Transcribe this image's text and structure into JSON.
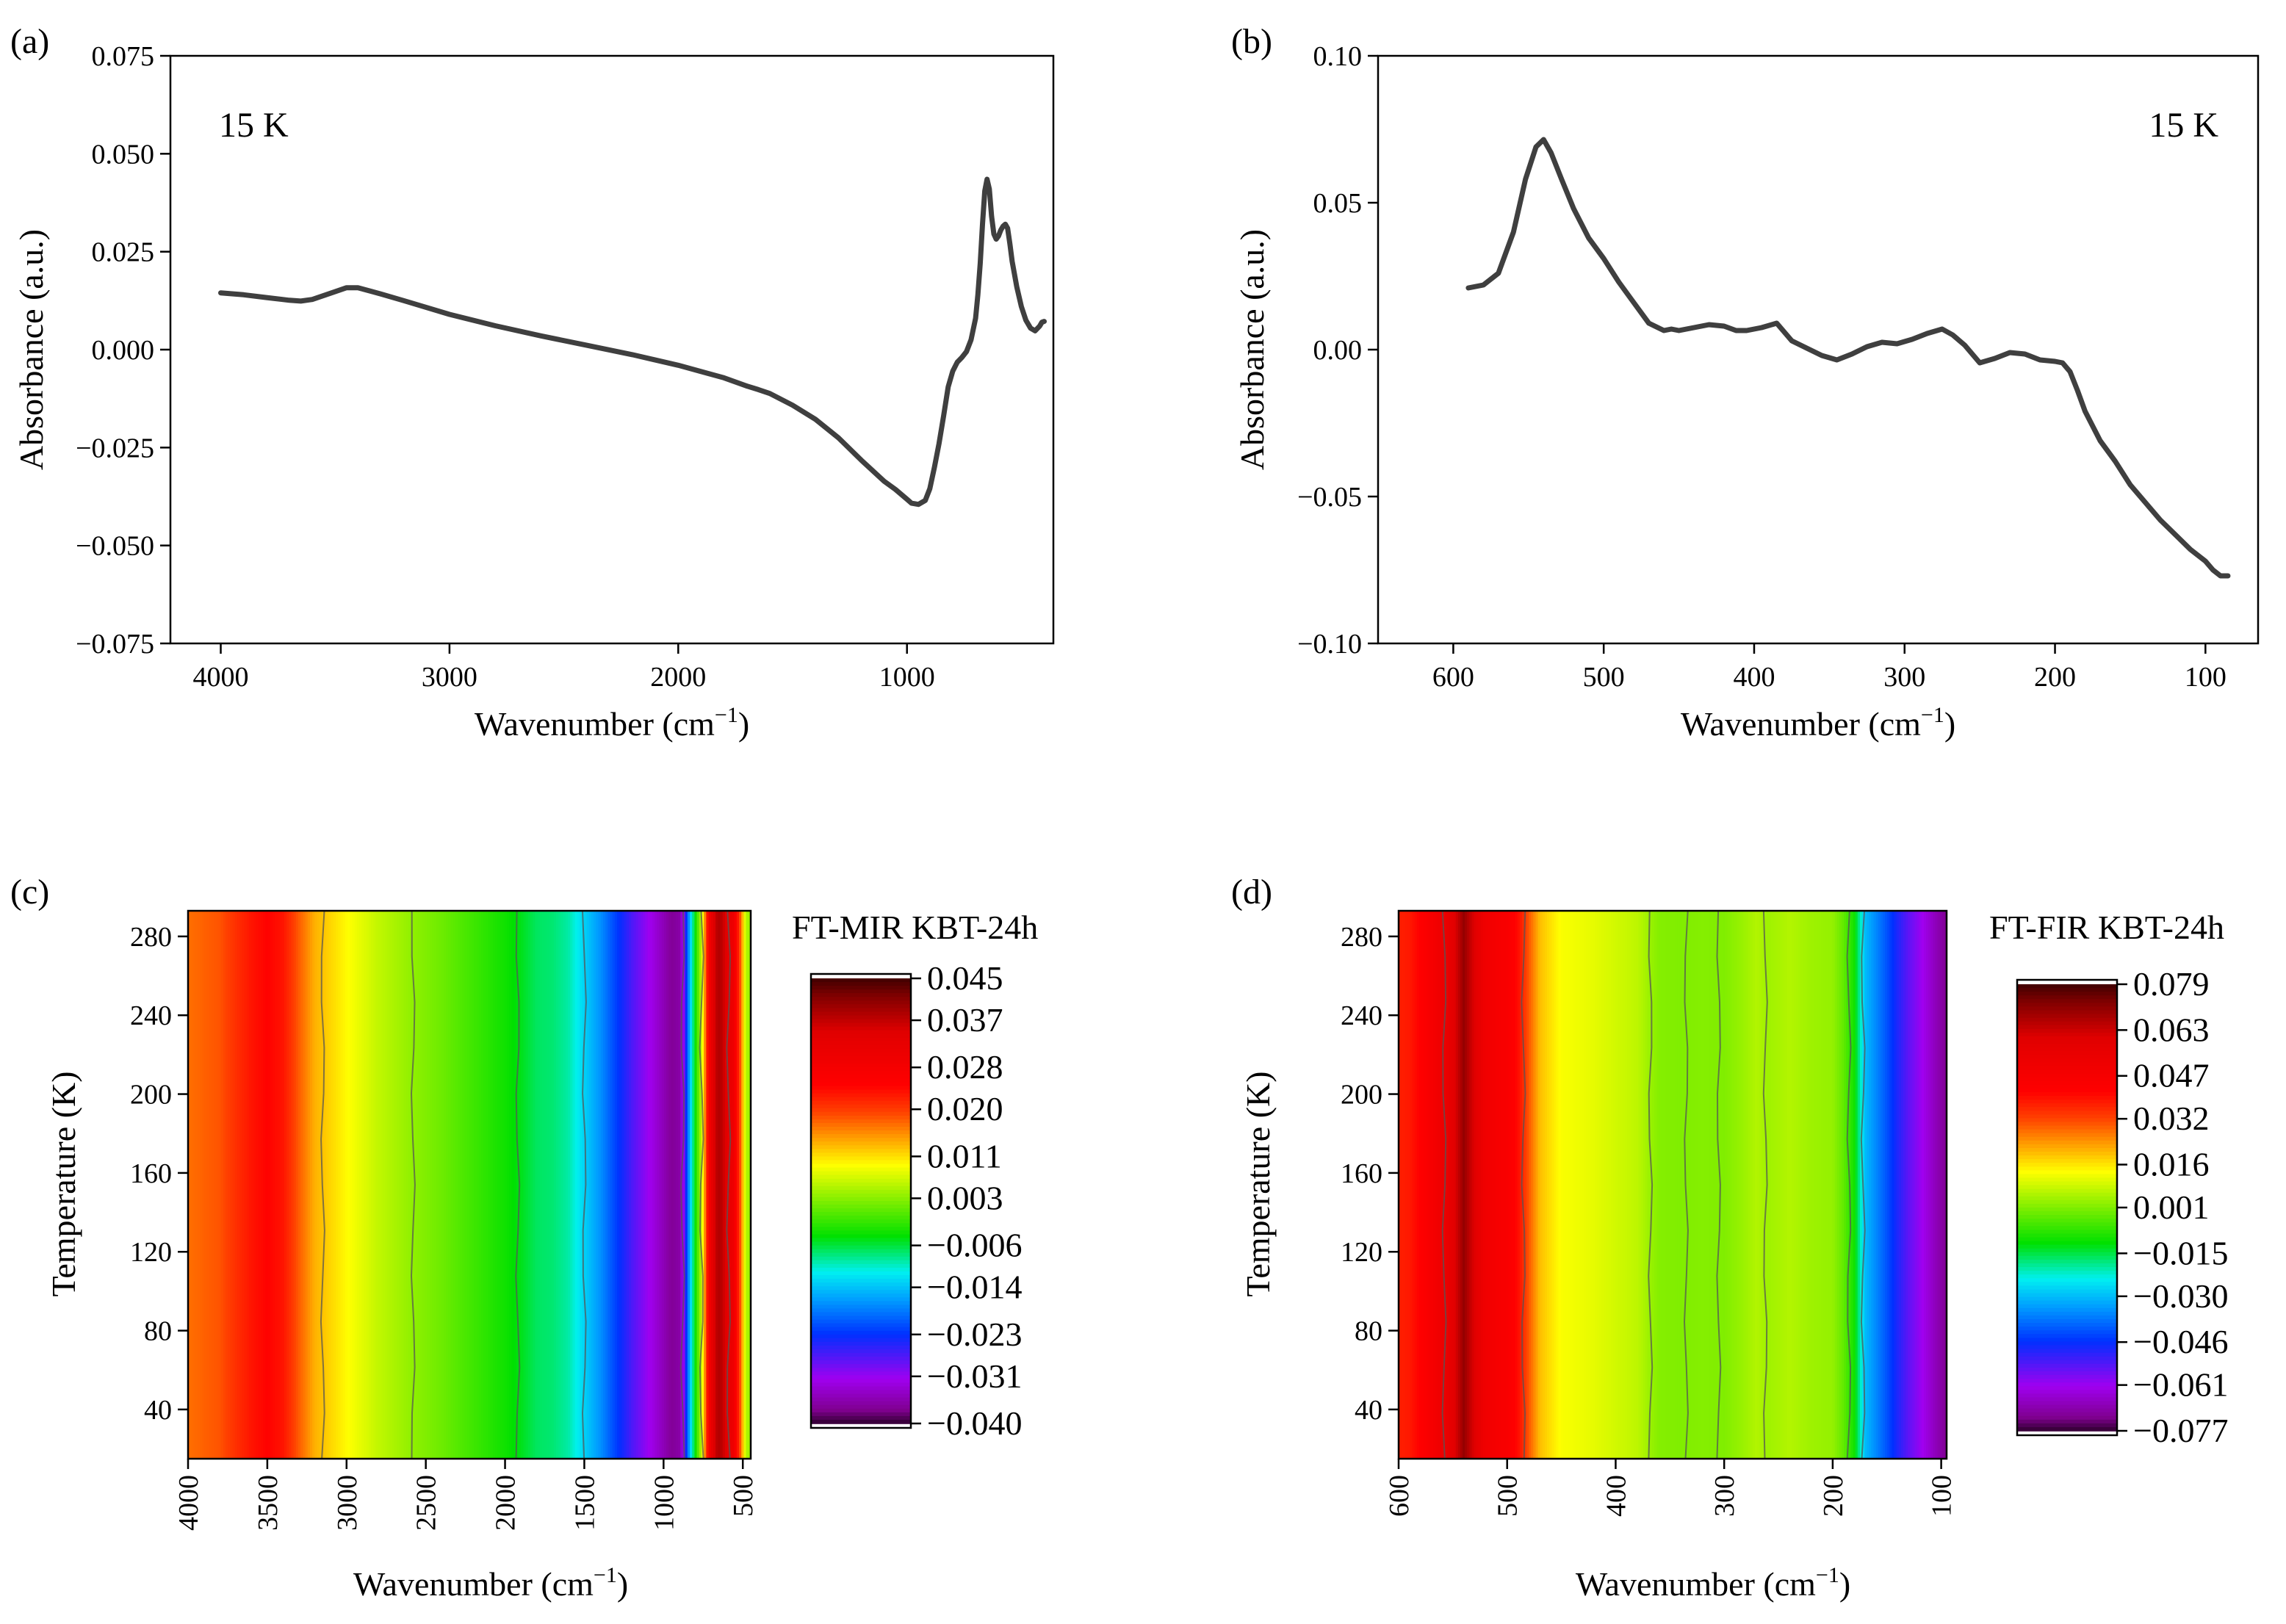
{
  "chart_data": [
    {
      "id": "a",
      "type": "line",
      "panel_label": "(a)",
      "annotation": "15 K",
      "xlabel": "Wavenumber (cm",
      "xlabel_sup": "−1",
      "xlabel_tail": ")",
      "ylabel": "Absorbance (a.u.)",
      "xlim": [
        4220,
        360
      ],
      "ylim": [
        -0.075,
        0.075
      ],
      "xticks": [
        4000,
        3000,
        2000,
        1000
      ],
      "xtick_labels": [
        "4000",
        "3000",
        "2000",
        "1000"
      ],
      "yticks": [
        -0.075,
        -0.05,
        -0.025,
        0,
        0.025,
        0.05,
        0.075
      ],
      "ytick_labels": [
        "−0.075",
        "−0.050",
        "−0.025",
        "0.000",
        "0.025",
        "0.050",
        "0.075"
      ],
      "line_color": "#3f3f3f",
      "series": [
        {
          "x": [
            4000,
            3900,
            3800,
            3700,
            3650,
            3600,
            3500,
            3450,
            3400,
            3300,
            3200,
            3000,
            2800,
            2600,
            2400,
            2200,
            2000,
            1800,
            1700,
            1650,
            1600,
            1500,
            1400,
            1300,
            1200,
            1100,
            1050,
            1000,
            980,
            950,
            920,
            900,
            880,
            860,
            840,
            820,
            800,
            780,
            760,
            740,
            720,
            700,
            690,
            680,
            670,
            660,
            650,
            640,
            630,
            620,
            610,
            600,
            590,
            580,
            570,
            560,
            550,
            540,
            520,
            500,
            480,
            460,
            440,
            420,
            410,
            400
          ],
          "y": [
            0.0145,
            0.014,
            0.0133,
            0.0126,
            0.0124,
            0.0128,
            0.0148,
            0.0158,
            0.0158,
            0.0142,
            0.0125,
            0.009,
            0.0061,
            0.0035,
            0.0011,
            -0.0013,
            -0.004,
            -0.0072,
            -0.0093,
            -0.0102,
            -0.0112,
            -0.0142,
            -0.0178,
            -0.0225,
            -0.0282,
            -0.0336,
            -0.0357,
            -0.0382,
            -0.0392,
            -0.0395,
            -0.0385,
            -0.0355,
            -0.03,
            -0.024,
            -0.017,
            -0.0095,
            -0.0055,
            -0.0032,
            -0.002,
            -0.0005,
            0.0025,
            0.008,
            0.014,
            0.022,
            0.032,
            0.0405,
            0.0435,
            0.041,
            0.034,
            0.0295,
            0.0282,
            0.029,
            0.0305,
            0.0315,
            0.032,
            0.031,
            0.027,
            0.0225,
            0.016,
            0.011,
            0.0075,
            0.0055,
            0.0048,
            0.006,
            0.007,
            0.0072
          ]
        }
      ]
    },
    {
      "id": "b",
      "type": "line",
      "panel_label": "(b)",
      "annotation": "15 K",
      "xlabel": "Wavenumber (cm",
      "xlabel_sup": "−1",
      "xlabel_tail": ")",
      "ylabel": "Absorbance (a.u.)",
      "xlim": [
        650,
        65
      ],
      "ylim": [
        -0.1,
        0.1
      ],
      "xticks": [
        600,
        500,
        400,
        300,
        200,
        100
      ],
      "xtick_labels": [
        "600",
        "500",
        "400",
        "300",
        "200",
        "100"
      ],
      "yticks": [
        -0.1,
        -0.05,
        0,
        0.05,
        0.1
      ],
      "ytick_labels": [
        "−0.10",
        "−0.05",
        "0.00",
        "0.05",
        "0.10"
      ],
      "line_color": "#3f3f3f",
      "series": [
        {
          "x": [
            590,
            580,
            570,
            560,
            552,
            545,
            540,
            535,
            528,
            520,
            510,
            500,
            490,
            480,
            470,
            460,
            455,
            450,
            440,
            430,
            420,
            412,
            405,
            395,
            385,
            375,
            365,
            355,
            345,
            335,
            325,
            315,
            305,
            295,
            285,
            275,
            268,
            260,
            250,
            240,
            230,
            220,
            210,
            200,
            195,
            190,
            185,
            180,
            170,
            160,
            150,
            140,
            130,
            120,
            110,
            100,
            95,
            90,
            85
          ],
          "y": [
            0.021,
            0.022,
            0.026,
            0.04,
            0.058,
            0.069,
            0.0715,
            0.067,
            0.058,
            0.048,
            0.038,
            0.031,
            0.023,
            0.016,
            0.009,
            0.0065,
            0.007,
            0.0065,
            0.0075,
            0.0085,
            0.008,
            0.0065,
            0.0065,
            0.0075,
            0.009,
            0.003,
            0.0005,
            -0.002,
            -0.0035,
            -0.0015,
            0.001,
            0.0025,
            0.002,
            0.0035,
            0.0055,
            0.007,
            0.005,
            0.0015,
            -0.0045,
            -0.003,
            -0.001,
            -0.0015,
            -0.0035,
            -0.004,
            -0.0045,
            -0.0075,
            -0.014,
            -0.021,
            -0.031,
            -0.038,
            -0.046,
            -0.052,
            -0.058,
            -0.063,
            -0.068,
            -0.072,
            -0.075,
            -0.077,
            -0.077
          ]
        }
      ]
    },
    {
      "id": "c",
      "type": "heatmap",
      "panel_label": "(c)",
      "xlabel": "Wavenumber (cm",
      "xlabel_sup": "−1",
      "xlabel_tail": ")",
      "ylabel": "Temperature (K)",
      "xlim": [
        4000,
        450
      ],
      "ylim": [
        15,
        293
      ],
      "xticks": [
        4000,
        3500,
        3000,
        2500,
        2000,
        1500,
        1000,
        500
      ],
      "xtick_labels": [
        "4000",
        "3500",
        "3000",
        "2500",
        "2000",
        "1500",
        "1000",
        "500"
      ],
      "yticks": [
        40,
        80,
        120,
        160,
        200,
        240,
        280
      ],
      "ytick_labels": [
        "40",
        "80",
        "120",
        "160",
        "200",
        "240",
        "280"
      ],
      "colorbar_title": "FT-MIR KBT-24h",
      "colorbar_range": [
        -0.04,
        0.045
      ],
      "colorbar_ticks": [
        0.045,
        0.037,
        0.028,
        0.02,
        0.011,
        0.003,
        -0.006,
        -0.014,
        -0.023,
        -0.031,
        -0.04
      ],
      "colorbar_tick_labels": [
        "0.045",
        "0.037",
        "0.028",
        "0.020",
        "0.011",
        "0.003",
        "−0.006",
        "−0.014",
        "−0.023",
        "−0.031",
        "−0.040"
      ],
      "profile_x": [
        4000,
        3800,
        3600,
        3500,
        3400,
        3300,
        3200,
        3000,
        2800,
        2600,
        2400,
        2200,
        2000,
        1900,
        1800,
        1700,
        1600,
        1500,
        1400,
        1300,
        1200,
        1100,
        1000,
        950,
        900,
        870,
        850,
        820,
        800,
        780,
        760,
        740,
        720,
        700,
        680,
        660,
        640,
        620,
        600,
        560,
        520,
        480,
        450
      ],
      "profile_values": [
        0.017,
        0.0185,
        0.023,
        0.0245,
        0.023,
        0.018,
        0.0135,
        0.0095,
        0.006,
        0.0035,
        0.0015,
        -0.001,
        -0.0035,
        -0.005,
        -0.007,
        -0.0075,
        -0.009,
        -0.013,
        -0.017,
        -0.022,
        -0.027,
        -0.031,
        -0.035,
        -0.037,
        -0.036,
        -0.03,
        -0.02,
        -0.01,
        -0.004,
        0.001,
        0.006,
        0.015,
        0.025,
        0.032,
        0.035,
        0.038,
        0.038,
        0.036,
        0.034,
        0.03,
        0.02,
        0.005,
        0.004
      ],
      "contour_x": [
        3150,
        2580,
        1920,
        1500,
        880,
        760,
        590
      ]
    },
    {
      "id": "d",
      "type": "heatmap",
      "panel_label": "(d)",
      "xlabel": "Wavenumber (cm",
      "xlabel_sup": "−1",
      "xlabel_tail": ")",
      "ylabel": "Temperature (K)",
      "xlim": [
        600,
        95
      ],
      "ylim": [
        15,
        293
      ],
      "xticks": [
        600,
        500,
        400,
        300,
        200,
        100
      ],
      "xtick_labels": [
        "600",
        "500",
        "400",
        "300",
        "200",
        "100"
      ],
      "yticks": [
        40,
        80,
        120,
        160,
        200,
        240,
        280
      ],
      "ytick_labels": [
        "40",
        "80",
        "120",
        "160",
        "200",
        "240",
        "280"
      ],
      "colorbar_title": "FT-FIR KBT-24h",
      "colorbar_range": [
        -0.077,
        0.079
      ],
      "colorbar_ticks": [
        0.079,
        0.063,
        0.047,
        0.032,
        0.016,
        0.001,
        -0.015,
        -0.03,
        -0.046,
        -0.061,
        -0.077
      ],
      "colorbar_tick_labels": [
        "0.079",
        "0.063",
        "0.047",
        "0.032",
        "0.016",
        "0.001",
        "−0.015",
        "−0.030",
        "−0.046",
        "−0.061",
        "−0.077"
      ],
      "profile_x": [
        600,
        590,
        580,
        570,
        560,
        550,
        540,
        530,
        520,
        500,
        490,
        480,
        470,
        450,
        420,
        400,
        380,
        370,
        360,
        340,
        320,
        300,
        280,
        270,
        260,
        240,
        220,
        200,
        190,
        180,
        175,
        170,
        160,
        150,
        140,
        130,
        120,
        110,
        100,
        95
      ],
      "profile_values": [
        0.037,
        0.038,
        0.042,
        0.047,
        0.052,
        0.058,
        0.07,
        0.06,
        0.05,
        0.045,
        0.04,
        0.03,
        0.02,
        0.013,
        0.011,
        0.009,
        0.007,
        0.004,
        0.0015,
        0.001,
        0.0015,
        0.001,
        0.004,
        0.006,
        0.004,
        0.006,
        0.004,
        0.003,
        -0.002,
        -0.01,
        -0.02,
        -0.03,
        -0.036,
        -0.042,
        -0.049,
        -0.055,
        -0.06,
        -0.065,
        -0.07,
        -0.072
      ],
      "contour_x": [
        558,
        485,
        368,
        335,
        305,
        262,
        185,
        172
      ]
    }
  ]
}
